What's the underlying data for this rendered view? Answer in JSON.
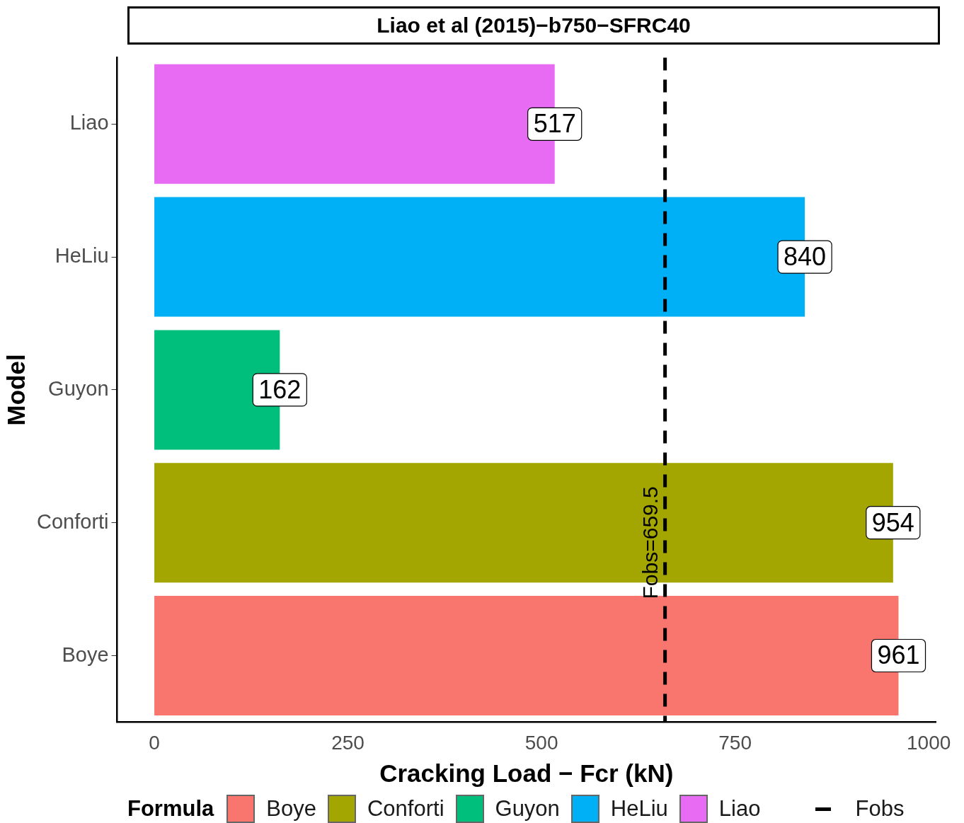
{
  "chart_data": {
    "type": "bar",
    "orientation": "horizontal",
    "title": "Liao et al (2015)−b750−SFRC40",
    "xlabel": "Cracking Load − Fcr (kN)",
    "ylabel": "Model",
    "legend_title": "Formula",
    "legend": "bottom",
    "categories": [
      "Liao",
      "HeLiu",
      "Guyon",
      "Conforti",
      "Boye"
    ],
    "values": [
      517,
      840,
      162,
      954,
      961
    ],
    "colors": [
      "#e76bf3",
      "#00b0f6",
      "#00bf7d",
      "#a3a500",
      "#f8766d"
    ],
    "xlim": [
      -48,
      1009
    ],
    "xticks": [
      0,
      250,
      500,
      750,
      1000
    ],
    "grid": false,
    "data_labels": true,
    "ref_lines": [
      {
        "axis": "x",
        "value": 659.5,
        "label": "Fobs=659.5",
        "color": "#000000",
        "line_style": "dashed"
      }
    ],
    "annotations": [
      "Fobs"
    ]
  }
}
